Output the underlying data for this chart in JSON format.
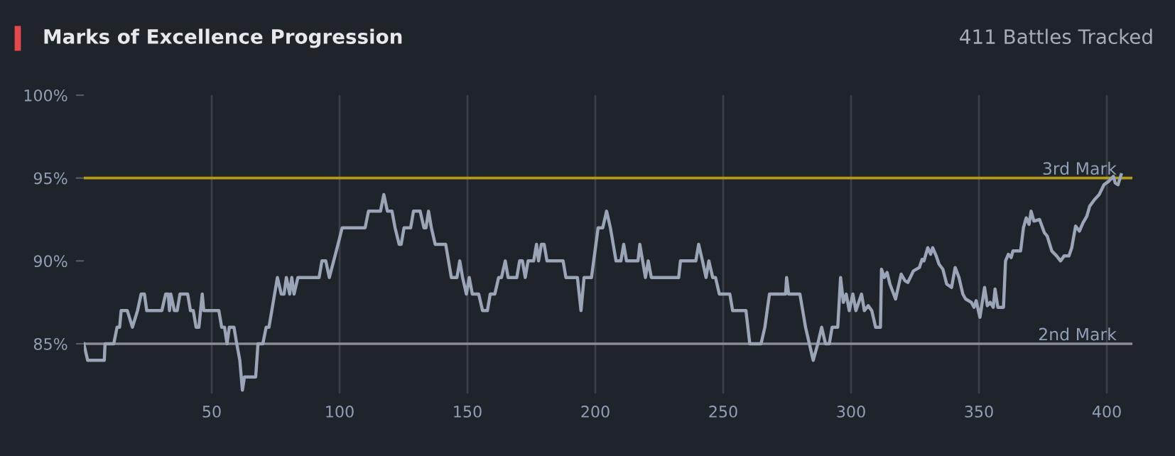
{
  "chart_data": {
    "type": "line",
    "title": "Marks of Excellence Progression",
    "subtitle": "411 Battles Tracked",
    "x": [
      0,
      1.5,
      8,
      8.3,
      11.7,
      13,
      14,
      14.6,
      17,
      19,
      21,
      22.4,
      23.7,
      24.6,
      30.5,
      32,
      33,
      33.5,
      34,
      35.4,
      36.5,
      37.6,
      40.6,
      41.7,
      42.8,
      43.9,
      45,
      46.3,
      46.9,
      52.8,
      53.9,
      55,
      56,
      56.9,
      58.7,
      59.8,
      61,
      62,
      62.8,
      67.2,
      68.1,
      70,
      71.3,
      72.4,
      75.7,
      77.2,
      78.3,
      79.2,
      80.5,
      81.3,
      82.2,
      83.7,
      92,
      93.1,
      94.6,
      96,
      99.4,
      101,
      110,
      111.3,
      116,
      117.3,
      118.7,
      120.5,
      121.7,
      123.3,
      124.1,
      125.2,
      127.8,
      128.9,
      131.5,
      133,
      133.8,
      134.8,
      135.9,
      137.4,
      141.5,
      143.7,
      145.9,
      147,
      148.1,
      149.6,
      150.7,
      151.9,
      154.4,
      155.9,
      157.8,
      158.9,
      160.7,
      162.2,
      163.3,
      164.8,
      165.9,
      169.3,
      170.4,
      171.5,
      172.6,
      173.7,
      175.9,
      177,
      177.8,
      178.9,
      180,
      181.1,
      187.4,
      188.5,
      193,
      194.4,
      195.6,
      198.5,
      201.1,
      202.9,
      204.4,
      205.9,
      208.1,
      210,
      211.1,
      212.2,
      216.7,
      217.4,
      218.5,
      219.6,
      220.7,
      221.9,
      232.6,
      233.3,
      239.3,
      240.4,
      241.9,
      243.3,
      244.4,
      245.9,
      247,
      248.5,
      252.6,
      253.7,
      258.9,
      260.4,
      264.8,
      266.3,
      268.1,
      274.4,
      274.8,
      275.6,
      280,
      282.2,
      283.7,
      285.2,
      287,
      288.5,
      290,
      291.5,
      292.6,
      294.8,
      295.9,
      297,
      298.1,
      299.3,
      300.7,
      301.9,
      304.1,
      305.2,
      306.7,
      308.1,
      309.6,
      311.5,
      311.9,
      313,
      314.1,
      315.2,
      317.4,
      319.6,
      321.1,
      322.2,
      324.4,
      326.7,
      327.8,
      328.5,
      330,
      331.1,
      331.9,
      333.3,
      334.4,
      335.9,
      337.4,
      339.3,
      340.7,
      342.2,
      343.7,
      344.8,
      347,
      348.1,
      348.9,
      350.4,
      351.5,
      352.2,
      353.3,
      354.4,
      355.6,
      356.3,
      357.4,
      359.6,
      360.4,
      361.5,
      362.6,
      363.3,
      366.3,
      367.4,
      368.5,
      369.6,
      370.4,
      371.5,
      373.7,
      375.6,
      376.7,
      378.5,
      380.4,
      381.9,
      383.3,
      385.2,
      386.3,
      387.8,
      389.3,
      390.7,
      392.2,
      393.3,
      395.2,
      397,
      398.9,
      400.7,
      402.6,
      403.3,
      404.4,
      405.6
    ],
    "series": [
      {
        "color": "#9aa5b8",
        "values": [
          85,
          84,
          84,
          85,
          85,
          86,
          86,
          87,
          87,
          86,
          87,
          88,
          88,
          87,
          87,
          88,
          88,
          87,
          88,
          87,
          87,
          88,
          88,
          87,
          87,
          86,
          86,
          88,
          87,
          87,
          86,
          86,
          85,
          86,
          86,
          85,
          84,
          82.2,
          83,
          83,
          85,
          85,
          86,
          86,
          89,
          88,
          88,
          89,
          88,
          89,
          88,
          89,
          89,
          90,
          90,
          89,
          91,
          92,
          92,
          93,
          93,
          94,
          93,
          93,
          92,
          91,
          91,
          92,
          92,
          93,
          93,
          92,
          92,
          93,
          92,
          91,
          91,
          89,
          89,
          90,
          89,
          88,
          89,
          88,
          88,
          87,
          87,
          88,
          88,
          89,
          89,
          90,
          89,
          89,
          90,
          90,
          89,
          90,
          90,
          91,
          90,
          91,
          91,
          90,
          90,
          89,
          89,
          87,
          89,
          89,
          92,
          92,
          93,
          92,
          90,
          90,
          91,
          90,
          90,
          91,
          90,
          89,
          90,
          89,
          89,
          90,
          90,
          91,
          90,
          89,
          90,
          89,
          89,
          88,
          88,
          87,
          87,
          85,
          85,
          86,
          88,
          88,
          89,
          88,
          88,
          86,
          85,
          84,
          85,
          86,
          85,
          85,
          86,
          86,
          89,
          87.5,
          88,
          87,
          88,
          87,
          88,
          87,
          87.3,
          87,
          86,
          86,
          89.5,
          89,
          89.3,
          88.6,
          87.7,
          89.2,
          88.8,
          88.7,
          89.4,
          89.6,
          90.1,
          90,
          90.8,
          90.4,
          90.8,
          90.3,
          89.8,
          89.5,
          88.6,
          88.4,
          89.6,
          89,
          88,
          87.7,
          87.5,
          87.2,
          87.6,
          86.6,
          87.7,
          88.4,
          87.3,
          87.5,
          87.2,
          88.3,
          87.2,
          87.2,
          90,
          90.4,
          90.2,
          90.6,
          90.6,
          92,
          92.6,
          92.2,
          93,
          92.4,
          92.5,
          91.7,
          91.5,
          90.6,
          90.3,
          90,
          90.3,
          90.3,
          90.8,
          92.1,
          91.8,
          92.3,
          92.7,
          93.3,
          93.7,
          94,
          94.6,
          94.8,
          95.1,
          94.7,
          94.6,
          95.2
        ]
      }
    ],
    "xlim": [
      0,
      410
    ],
    "xticks": [
      50,
      100,
      150,
      200,
      250,
      300,
      350,
      400
    ],
    "ylim": [
      82,
      100
    ],
    "yticks": [
      {
        "value": 85,
        "label": "85%"
      },
      {
        "value": 90,
        "label": "90%"
      },
      {
        "value": 95,
        "label": "95%"
      },
      {
        "value": 100,
        "label": "100%"
      }
    ],
    "grid": "x",
    "marker": "none",
    "line_style": "solid",
    "legend": false,
    "ref_lines": [
      {
        "axis": "y",
        "value": 95,
        "label": "3rd Mark",
        "color": "#b59a1a"
      },
      {
        "axis": "y",
        "value": 85,
        "label": "2nd Mark",
        "color": "#8a8d93"
      }
    ]
  }
}
